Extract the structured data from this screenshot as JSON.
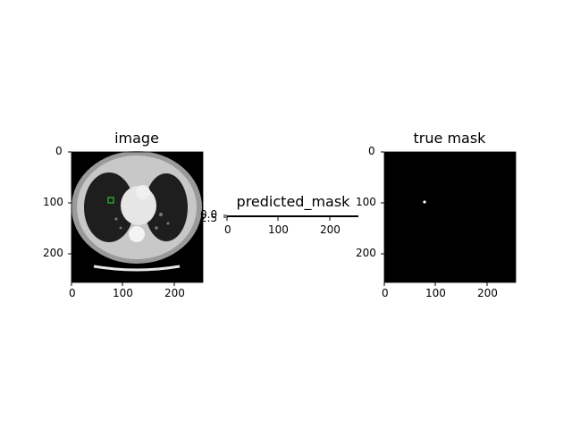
{
  "figure": {
    "panels": [
      {
        "id": "image",
        "title": "image",
        "xticks": [
          "0",
          "100",
          "200"
        ],
        "yticks": [
          "0",
          "100",
          "200"
        ]
      },
      {
        "id": "predicted",
        "title": "predicted_mask",
        "xticks": [
          "0",
          "100",
          "200"
        ],
        "yticks": [
          "0.0",
          "2.5"
        ]
      },
      {
        "id": "true",
        "title": "true mask",
        "xticks": [
          "0",
          "100",
          "200"
        ],
        "yticks": [
          "0",
          "100",
          "200"
        ]
      }
    ],
    "colors": {
      "ct_background": "#c8c8c8",
      "lung": "#1e1e1e",
      "nodule_marker": "#2bbf2b",
      "mask_background": "#000000",
      "mask_spot": "#ffffff"
    }
  }
}
